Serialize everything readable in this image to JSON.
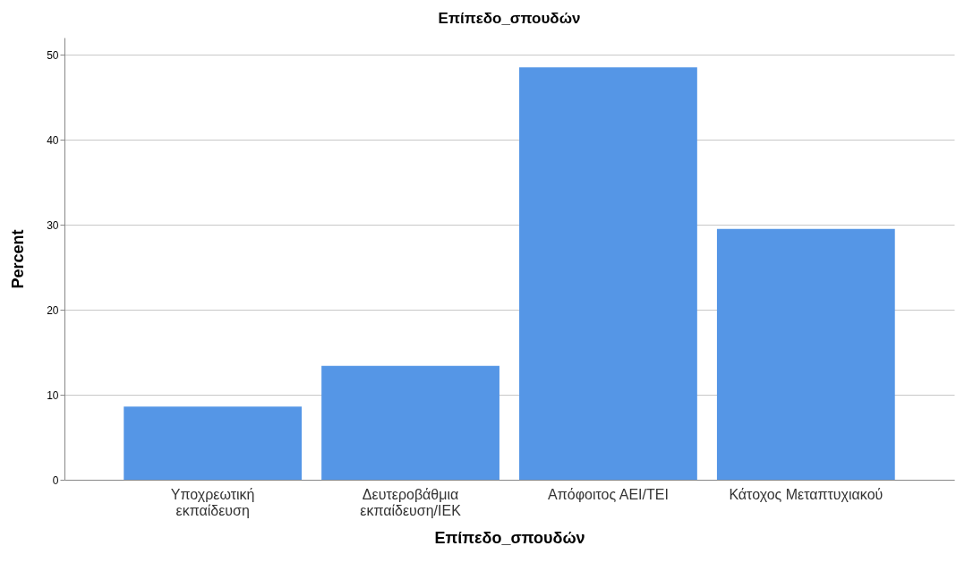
{
  "chart_data": {
    "type": "bar",
    "title": "Επίπεδο_σπουδών",
    "xlabel": "Επίπεδο_σπουδών",
    "ylabel": "Percent",
    "categories": [
      "Υποχρεωτική εκπαίδευση",
      "Δευτεροβάθμια εκπαίδευση/ΙΕΚ",
      "Απόφοιτος ΑΕΙ/ΤΕΙ",
      "Κάτοχος Μεταπτυχιακού"
    ],
    "values": [
      8.6,
      13.4,
      48.5,
      29.5
    ],
    "color": "#5596e6",
    "ylim": [
      0,
      52
    ],
    "yticks": [
      0,
      10,
      20,
      30,
      40,
      50
    ],
    "grid": "y"
  }
}
